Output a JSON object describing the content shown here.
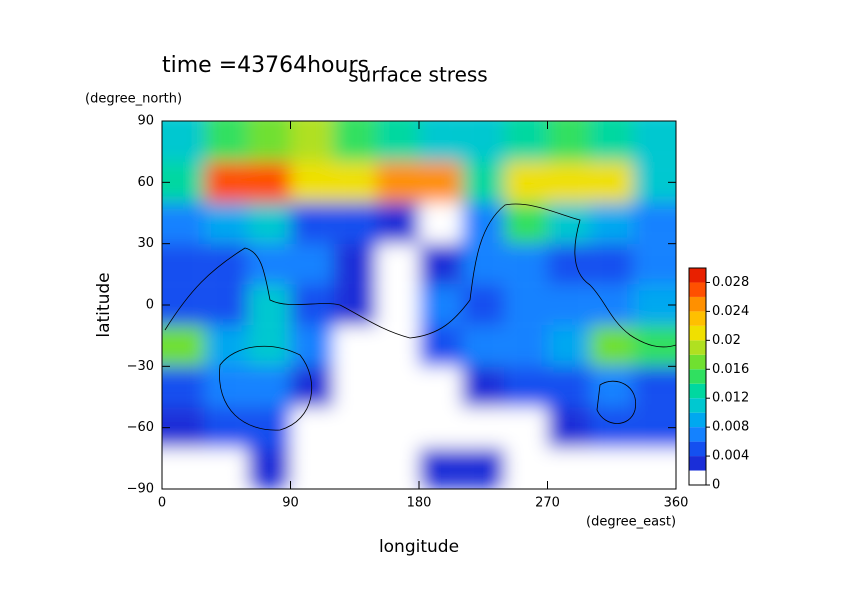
{
  "chart_data": {
    "type": "contour",
    "title": "surface stress",
    "subtitle": "time =43764hours",
    "x_label": "longitude",
    "x_unit": "(degree_east)",
    "y_label": "latitude",
    "y_unit": "(degree_north)",
    "x": [
      15,
      45,
      75,
      105,
      135,
      165,
      195,
      225,
      255,
      285,
      315,
      345
    ],
    "y": [
      80,
      60,
      40,
      20,
      0,
      -20,
      -40,
      -60,
      -80
    ],
    "values": [
      [
        0.01,
        0.014,
        0.016,
        0.018,
        0.014,
        0.012,
        0.01,
        0.01,
        0.012,
        0.014,
        0.012,
        0.01
      ],
      [
        0.012,
        0.026,
        0.026,
        0.02,
        0.02,
        0.024,
        0.024,
        0.012,
        0.02,
        0.02,
        0.02,
        0.01
      ],
      [
        0.006,
        0.008,
        0.01,
        0.004,
        0.004,
        0.002,
        0,
        0.006,
        0.014,
        0.01,
        0.008,
        0.006
      ],
      [
        0.004,
        0.004,
        0.006,
        0.006,
        0.002,
        0,
        0.002,
        0.006,
        0.006,
        0.004,
        0.004,
        0.006
      ],
      [
        0.004,
        0.004,
        0.01,
        0.004,
        0.002,
        0,
        0.006,
        0.004,
        0.006,
        0.006,
        0.006,
        0.008
      ],
      [
        0.016,
        0.008,
        0.01,
        0.006,
        0,
        0,
        0.004,
        0.006,
        0.006,
        0.008,
        0.016,
        0.014
      ],
      [
        0.004,
        0.006,
        0.006,
        0.002,
        0,
        0,
        0,
        0.002,
        0.004,
        0.004,
        0.006,
        0.004
      ],
      [
        0.002,
        0.004,
        0.004,
        0,
        0,
        0,
        0,
        0,
        0,
        0.002,
        0.004,
        0.004
      ],
      [
        0,
        0,
        0.002,
        0,
        0,
        0,
        0.002,
        0.002,
        0,
        0,
        0,
        0
      ]
    ],
    "xlim": [
      0,
      360
    ],
    "xticks": [
      0,
      90,
      180,
      270,
      360
    ],
    "ylim": [
      -90,
      90
    ],
    "yticks": [
      {
        "value": -90,
        "label": "−90"
      },
      {
        "value": -60,
        "label": "−60"
      },
      {
        "value": -30,
        "label": "−30"
      },
      0,
      30,
      60,
      90
    ],
    "clim": [
      0,
      0.03
    ],
    "cticks": [
      0,
      0.004,
      0.008,
      0.012,
      0.016,
      0.02,
      0.024,
      0.028
    ],
    "colormap": [
      "#ffffff",
      "#1a2ed8",
      "#1450f0",
      "#1482ff",
      "#00a8f0",
      "#00c8d0",
      "#00d8a0",
      "#30e060",
      "#70e030",
      "#b0e020",
      "#f0e000",
      "#ffc000",
      "#ff9000",
      "#ff5000",
      "#e82000"
    ]
  }
}
